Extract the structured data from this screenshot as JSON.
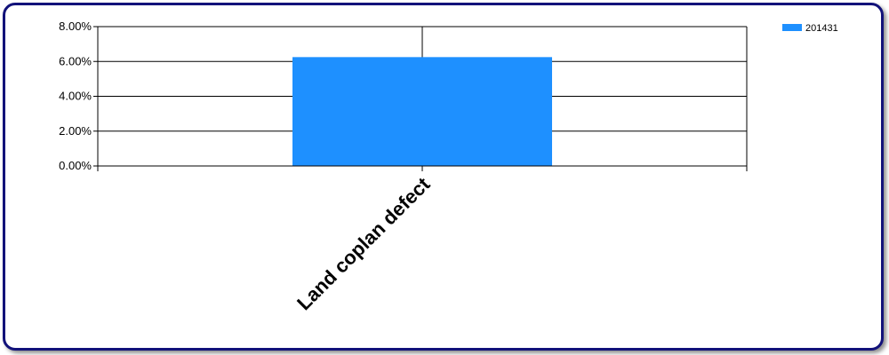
{
  "chart_data": {
    "type": "bar",
    "categories": [
      "Land coplan defect"
    ],
    "series": [
      {
        "name": "201431",
        "values": [
          6.25
        ],
        "color": "#1e90ff"
      }
    ],
    "ylim": [
      0,
      8
    ],
    "yticks": [
      0,
      2,
      4,
      6,
      8
    ],
    "ytick_labels": [
      "0.00%",
      "2.00%",
      "4.00%",
      "6.00%",
      "8.00%"
    ],
    "grid": true,
    "legend_position": "top-right"
  }
}
